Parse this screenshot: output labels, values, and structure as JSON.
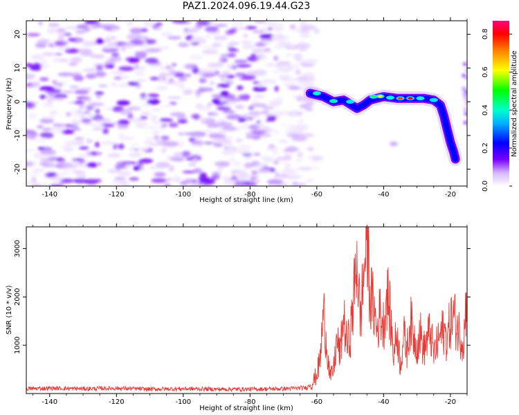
{
  "title": "PAZ1.2024.096.19.44.G23",
  "chart_data": [
    {
      "type": "heatmap",
      "xlabel": "Height of straight line (km)",
      "ylabel": "Frequency (Hz)",
      "xlim": [
        -147,
        -15
      ],
      "ylim": [
        -25,
        24
      ],
      "xticks": [
        -140,
        -120,
        -100,
        -80,
        -60,
        -40,
        -20
      ],
      "yticks": [
        -20,
        -10,
        0,
        10,
        20
      ],
      "colorbar": {
        "label": "Normalized spectral amplitude",
        "range": [
          0.0,
          0.87
        ],
        "ticks": [
          0.0,
          0.2,
          0.4,
          0.6,
          0.8
        ],
        "colormap": [
          "#ffffff",
          "#7a00ff",
          "#0000ff",
          "#00ffff",
          "#00ff00",
          "#ffff00",
          "#ff7f00",
          "#ff0000",
          "#ff0080"
        ]
      },
      "features": {
        "noise_region_km": [
          -147,
          -72
        ],
        "signal_track": {
          "x": [
            -62,
            -58,
            -55,
            -52,
            -48,
            -46,
            -44,
            -40,
            -36,
            -32,
            -28,
            -25,
            -23,
            -22,
            -21,
            -20,
            -19,
            -18.5
          ],
          "y": [
            2.5,
            1.5,
            0,
            0.5,
            -2,
            -1,
            0.5,
            1.5,
            1,
            1,
            1,
            0.5,
            -1,
            -4,
            -8,
            -12,
            -15,
            -17
          ]
        },
        "right_edge_signal_km": [
          -16,
          -15
        ],
        "isolated_blob": {
          "x": -37,
          "y": -12.5
        }
      }
    },
    {
      "type": "line",
      "xlabel": "Height of straight line (km)",
      "ylabel": "SNR (10 * v/v)",
      "xlim": [
        -147,
        -15
      ],
      "ylim": [
        0,
        3450
      ],
      "xticks": [
        -140,
        -120,
        -100,
        -80,
        -60,
        -40,
        -20
      ],
      "yticks": [
        1000,
        2000,
        3000
      ],
      "color": "#e83a35",
      "series": [
        {
          "x": [
            -147,
            -140,
            -130,
            -120,
            -110,
            -100,
            -90,
            -80,
            -70,
            -63,
            -61,
            -60,
            -59,
            -58,
            -57,
            -56,
            -55,
            -54,
            -53,
            -52,
            -51,
            -50,
            -49,
            -48,
            -47,
            -46,
            -45,
            -44,
            -43,
            -42,
            -41,
            -40,
            -39,
            -38,
            -37,
            -36,
            -35,
            -34,
            -33,
            -32,
            -31,
            -30,
            -29,
            -28,
            -27,
            -26,
            -25,
            -24,
            -23,
            -22,
            -21,
            -20,
            -19,
            -18,
            -17,
            -16,
            -15
          ],
          "y": [
            100,
            110,
            100,
            110,
            90,
            100,
            90,
            90,
            100,
            120,
            250,
            400,
            700,
            1700,
            1000,
            300,
            500,
            1100,
            800,
            1600,
            1000,
            1200,
            1900,
            2900,
            1500,
            2400,
            3400,
            2000,
            1800,
            1300,
            1700,
            1400,
            2100,
            1600,
            800,
            1300,
            600,
            1200,
            900,
            1500,
            1200,
            1000,
            1250,
            900,
            1100,
            1300,
            800,
            1000,
            1200,
            1300,
            1100,
            1500,
            1600,
            1400,
            1200,
            1100,
            2200
          ]
        }
      ]
    }
  ]
}
